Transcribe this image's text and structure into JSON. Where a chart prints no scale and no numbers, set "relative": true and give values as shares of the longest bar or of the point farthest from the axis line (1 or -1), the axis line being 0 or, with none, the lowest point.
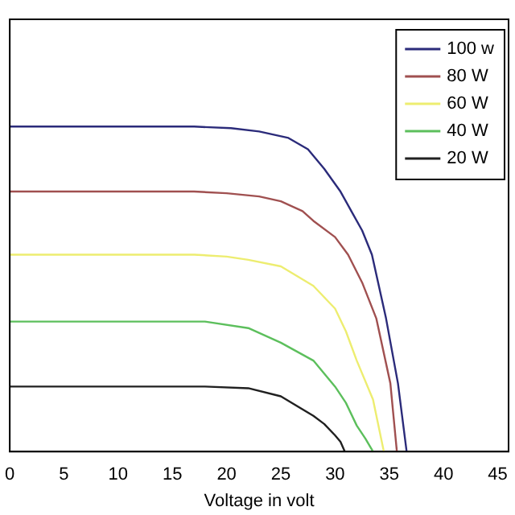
{
  "chart_data": {
    "type": "line",
    "xlabel": "Voltage in volt",
    "relative": true,
    "xlim": [
      0,
      46
    ],
    "xticks": [
      0,
      5,
      10,
      15,
      20,
      25,
      30,
      35,
      40,
      45
    ],
    "tick_labels": "x",
    "grid": false,
    "legend": "top right",
    "marker": "none",
    "line_style": "solid",
    "series": [
      {
        "name": "100 w",
        "color": "#2b2b7a",
        "x": [
          0,
          10,
          17,
          20.4,
          23,
          25.7,
          27.5,
          29,
          30.5,
          31.5,
          32.5,
          33.4,
          34.7,
          35.8,
          36.6
        ],
        "values": [
          1,
          1,
          1,
          0.995,
          0.985,
          0.965,
          0.93,
          0.87,
          0.8,
          0.74,
          0.68,
          0.606,
          0.41,
          0.21,
          0
        ]
      },
      {
        "name": "80 W",
        "color": "#a05050",
        "x": [
          0,
          10,
          17,
          20,
          23,
          25,
          27,
          28,
          30,
          31.2,
          32.5,
          33.8,
          35.1,
          35.7
        ],
        "values": [
          0.8,
          0.8,
          0.8,
          0.795,
          0.785,
          0.77,
          0.74,
          0.71,
          0.66,
          0.606,
          0.52,
          0.41,
          0.21,
          0
        ]
      },
      {
        "name": "60 W",
        "color": "#eded70",
        "x": [
          0,
          10,
          17,
          20,
          22,
          25,
          28,
          30,
          31,
          32,
          33.5,
          34.5
        ],
        "values": [
          0.606,
          0.606,
          0.606,
          0.6,
          0.59,
          0.57,
          0.51,
          0.44,
          0.37,
          0.28,
          0.16,
          0
        ]
      },
      {
        "name": "40 W",
        "color": "#5cbf5c",
        "x": [
          0,
          10,
          18,
          22,
          25,
          28,
          30,
          31,
          32,
          32.8,
          33.5
        ],
        "values": [
          0.4,
          0.4,
          0.4,
          0.38,
          0.335,
          0.28,
          0.2,
          0.15,
          0.08,
          0.04,
          0
        ]
      },
      {
        "name": "20 W",
        "color": "#202020",
        "x": [
          0,
          10,
          18,
          22,
          25,
          28,
          29,
          30,
          30.5,
          30.9
        ],
        "values": [
          0.2,
          0.2,
          0.2,
          0.195,
          0.17,
          0.11,
          0.085,
          0.05,
          0.03,
          0
        ]
      }
    ]
  }
}
